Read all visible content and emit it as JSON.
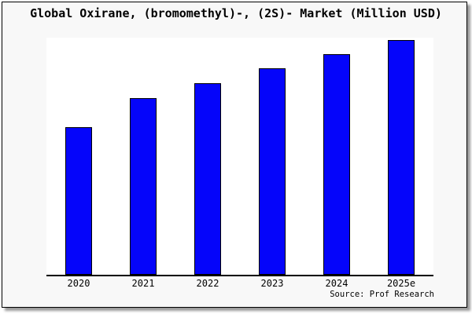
{
  "window": {
    "background_color": "#f8f8f8",
    "frame_border_color": "#000000",
    "plot_background_color": "#ffffff"
  },
  "header": {
    "title": "Global Oxirane, (bromomethyl)-, (2S)- Market (Million USD)"
  },
  "footer": {
    "source": "Source: Prof Research"
  },
  "chart_data": {
    "type": "bar",
    "title": "Global Oxirane, (bromomethyl)-, (2S)- Market (Million USD)",
    "categories": [
      "2020",
      "2021",
      "2022",
      "2023",
      "2024",
      "2025e"
    ],
    "values": [
      62.9,
      75.3,
      81.6,
      88.0,
      94.0,
      100.0
    ],
    "values_note": "relative index, tallest bar = 100 (no y-axis scale shown)",
    "xlabel": "",
    "ylabel": "",
    "ylim": [
      0,
      101
    ],
    "grid": false,
    "legend": "none",
    "y_axis_visible": false,
    "x_axis_line_color": "#000000",
    "bar_color": "#0505fa",
    "bar_border_color": "#000000",
    "annotation": "Source: Prof Research"
  }
}
